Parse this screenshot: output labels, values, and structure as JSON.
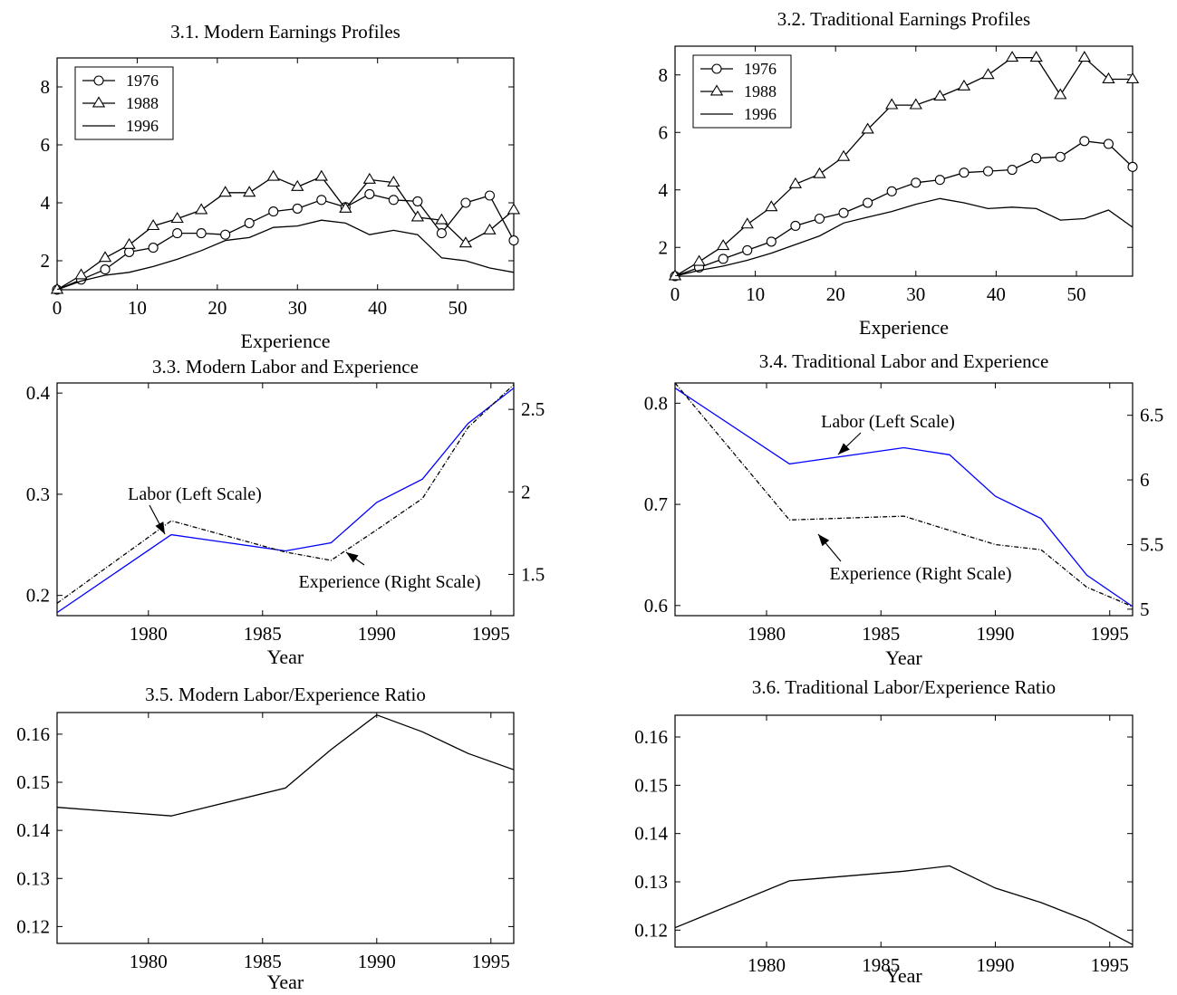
{
  "chart_data": [
    {
      "id": "p1",
      "type": "line",
      "title": "3.1. Modern Earnings Profiles",
      "xlabel": "Experience",
      "ylabel": "",
      "xlim": [
        0,
        57
      ],
      "ylim": [
        1,
        9
      ],
      "xticks": [
        0,
        10,
        20,
        30,
        40,
        50
      ],
      "yticks": [
        2,
        4,
        6,
        8
      ],
      "grid": false,
      "legend": "top-left",
      "series": [
        {
          "name": "1976",
          "marker": "circle",
          "color": "#000000",
          "x": [
            0,
            3,
            6,
            9,
            12,
            15,
            18,
            21,
            24,
            27,
            30,
            33,
            36,
            39,
            42,
            45,
            48,
            51,
            54,
            57
          ],
          "y": [
            1.0,
            1.35,
            1.7,
            2.3,
            2.45,
            2.95,
            2.95,
            2.9,
            3.3,
            3.7,
            3.8,
            4.1,
            3.85,
            4.3,
            4.1,
            4.05,
            2.95,
            4.0,
            4.25,
            2.7
          ]
        },
        {
          "name": "1988",
          "marker": "triangle",
          "color": "#000000",
          "x": [
            0,
            3,
            6,
            9,
            12,
            15,
            18,
            21,
            24,
            27,
            30,
            33,
            36,
            39,
            42,
            45,
            48,
            51,
            54,
            57
          ],
          "y": [
            1.0,
            1.5,
            2.1,
            2.55,
            3.2,
            3.45,
            3.75,
            4.35,
            4.35,
            4.9,
            4.55,
            4.9,
            3.8,
            4.8,
            4.7,
            3.5,
            3.4,
            2.6,
            3.05,
            3.75
          ]
        },
        {
          "name": "1996",
          "marker": "none",
          "color": "#000000",
          "x": [
            0,
            3,
            6,
            9,
            12,
            15,
            18,
            21,
            24,
            27,
            30,
            33,
            36,
            39,
            42,
            45,
            48,
            51,
            54,
            57
          ],
          "y": [
            1.0,
            1.3,
            1.5,
            1.6,
            1.8,
            2.05,
            2.35,
            2.7,
            2.8,
            3.15,
            3.2,
            3.4,
            3.3,
            2.9,
            3.05,
            2.9,
            2.1,
            2.0,
            1.75,
            1.6
          ]
        }
      ]
    },
    {
      "id": "p2",
      "type": "line",
      "title": "3.2. Traditional Earnings Profiles",
      "xlabel": "Experience",
      "ylabel": "",
      "xlim": [
        0,
        57
      ],
      "ylim": [
        1,
        9
      ],
      "xticks": [
        0,
        10,
        20,
        30,
        40,
        50
      ],
      "yticks": [
        2,
        4,
        6,
        8
      ],
      "grid": false,
      "legend": "top-left",
      "series": [
        {
          "name": "1976",
          "marker": "circle",
          "color": "#000000",
          "x": [
            0,
            3,
            6,
            9,
            12,
            15,
            18,
            21,
            24,
            27,
            30,
            33,
            36,
            39,
            42,
            45,
            48,
            51,
            54,
            57
          ],
          "y": [
            1.0,
            1.3,
            1.6,
            1.9,
            2.2,
            2.75,
            3.0,
            3.2,
            3.55,
            3.95,
            4.25,
            4.35,
            4.6,
            4.65,
            4.7,
            5.1,
            5.15,
            5.7,
            5.6,
            4.8
          ]
        },
        {
          "name": "1988",
          "marker": "triangle",
          "color": "#000000",
          "x": [
            0,
            3,
            6,
            9,
            12,
            15,
            18,
            21,
            24,
            27,
            30,
            33,
            36,
            39,
            42,
            45,
            48,
            51,
            54,
            57
          ],
          "y": [
            1.0,
            1.5,
            2.05,
            2.8,
            3.4,
            4.2,
            4.55,
            5.15,
            6.1,
            6.95,
            6.95,
            7.25,
            7.6,
            8.0,
            8.6,
            8.6,
            7.3,
            8.6,
            7.85,
            7.85
          ]
        },
        {
          "name": "1996",
          "marker": "none",
          "color": "#000000",
          "x": [
            0,
            3,
            6,
            9,
            12,
            15,
            18,
            21,
            24,
            27,
            30,
            33,
            36,
            39,
            42,
            45,
            48,
            51,
            54,
            57
          ],
          "y": [
            1.0,
            1.2,
            1.35,
            1.55,
            1.8,
            2.1,
            2.4,
            2.85,
            3.05,
            3.25,
            3.5,
            3.7,
            3.55,
            3.35,
            3.4,
            3.35,
            2.95,
            3.0,
            3.3,
            2.7
          ]
        }
      ]
    },
    {
      "id": "p3",
      "type": "line",
      "title": "3.3. Modern Labor and Experience",
      "xlabel": "Year",
      "ylabel": "",
      "xlim": [
        1976,
        1996
      ],
      "ylim": [
        0.18,
        0.41
      ],
      "ylim_right": [
        1.25,
        2.66
      ],
      "xticks": [
        1980,
        1985,
        1990,
        1995
      ],
      "yticks": [
        0.2,
        0.3,
        0.4
      ],
      "yticks_right": [
        1.5,
        2,
        2.5
      ],
      "grid": false,
      "annotations": [
        {
          "text": "Labor (Left Scale)",
          "target": "labor"
        },
        {
          "text": "Experience (Right Scale)",
          "target": "experience"
        }
      ],
      "series": [
        {
          "name": "labor",
          "axis": "left",
          "color": "#0000ff",
          "style": "solid",
          "x": [
            1976,
            1981,
            1986,
            1988,
            1990,
            1992,
            1994,
            1996
          ],
          "y": [
            0.183,
            0.26,
            0.244,
            0.252,
            0.292,
            0.315,
            0.37,
            0.405
          ]
        },
        {
          "name": "experience",
          "axis": "right",
          "color": "#000000",
          "style": "dashdot",
          "x": [
            1976,
            1981,
            1986,
            1988,
            1990,
            1992,
            1994,
            1996
          ],
          "y": [
            1.325,
            1.825,
            1.635,
            1.585,
            1.77,
            1.96,
            2.39,
            2.65
          ]
        }
      ]
    },
    {
      "id": "p4",
      "type": "line",
      "title": "3.4. Traditional Labor and Experience",
      "xlabel": "Year",
      "ylabel": "",
      "xlim": [
        1976,
        1996
      ],
      "ylim": [
        0.59,
        0.82
      ],
      "ylim_right": [
        4.95,
        6.75
      ],
      "xticks": [
        1980,
        1985,
        1990,
        1995
      ],
      "yticks": [
        0.6,
        0.7,
        0.8
      ],
      "yticks_right": [
        5,
        5.5,
        6,
        6.5
      ],
      "grid": false,
      "annotations": [
        {
          "text": "Labor (Left Scale)",
          "target": "labor"
        },
        {
          "text": "Experience (Right Scale)",
          "target": "experience"
        }
      ],
      "series": [
        {
          "name": "labor",
          "axis": "left",
          "color": "#0000ff",
          "style": "solid",
          "x": [
            1976,
            1981,
            1986,
            1988,
            1990,
            1992,
            1994,
            1996
          ],
          "y": [
            0.815,
            0.74,
            0.756,
            0.749,
            0.708,
            0.686,
            0.63,
            0.599
          ]
        },
        {
          "name": "experience",
          "axis": "right",
          "color": "#000000",
          "style": "dashdot",
          "x": [
            1976,
            1981,
            1986,
            1988,
            1990,
            1992,
            1994,
            1996
          ],
          "y": [
            6.75,
            5.69,
            5.72,
            5.61,
            5.5,
            5.46,
            5.17,
            5.02
          ]
        }
      ]
    },
    {
      "id": "p5",
      "type": "line",
      "title": "3.5. Modern Labor/Experience Ratio",
      "xlabel": "Year",
      "ylabel": "",
      "xlim": [
        1976,
        1996
      ],
      "ylim": [
        0.1165,
        0.1645
      ],
      "xticks": [
        1980,
        1985,
        1990,
        1995
      ],
      "yticks": [
        0.12,
        0.13,
        0.14,
        0.15,
        0.16
      ],
      "grid": false,
      "series": [
        {
          "name": "ratio",
          "axis": "left",
          "color": "#000000",
          "style": "solid",
          "x": [
            1976,
            1981,
            1986,
            1988,
            1990,
            1992,
            1994,
            1996
          ],
          "y": [
            0.1448,
            0.143,
            0.1488,
            0.1568,
            0.164,
            0.1605,
            0.156,
            0.1526
          ]
        }
      ]
    },
    {
      "id": "p6",
      "type": "line",
      "title": "3.6. Traditional Labor/Experience Ratio",
      "xlabel": "Year",
      "ylabel": "",
      "xlim": [
        1976,
        1996
      ],
      "ylim": [
        0.1165,
        0.1645
      ],
      "xticks": [
        1980,
        1985,
        1990,
        1995
      ],
      "yticks": [
        0.12,
        0.13,
        0.14,
        0.15,
        0.16
      ],
      "grid": false,
      "series": [
        {
          "name": "ratio",
          "axis": "left",
          "color": "#000000",
          "style": "solid",
          "x": [
            1976,
            1981,
            1986,
            1988,
            1990,
            1992,
            1994,
            1996
          ],
          "y": [
            0.1205,
            0.1302,
            0.1322,
            0.1333,
            0.1287,
            0.1257,
            0.122,
            0.117
          ]
        }
      ]
    }
  ]
}
